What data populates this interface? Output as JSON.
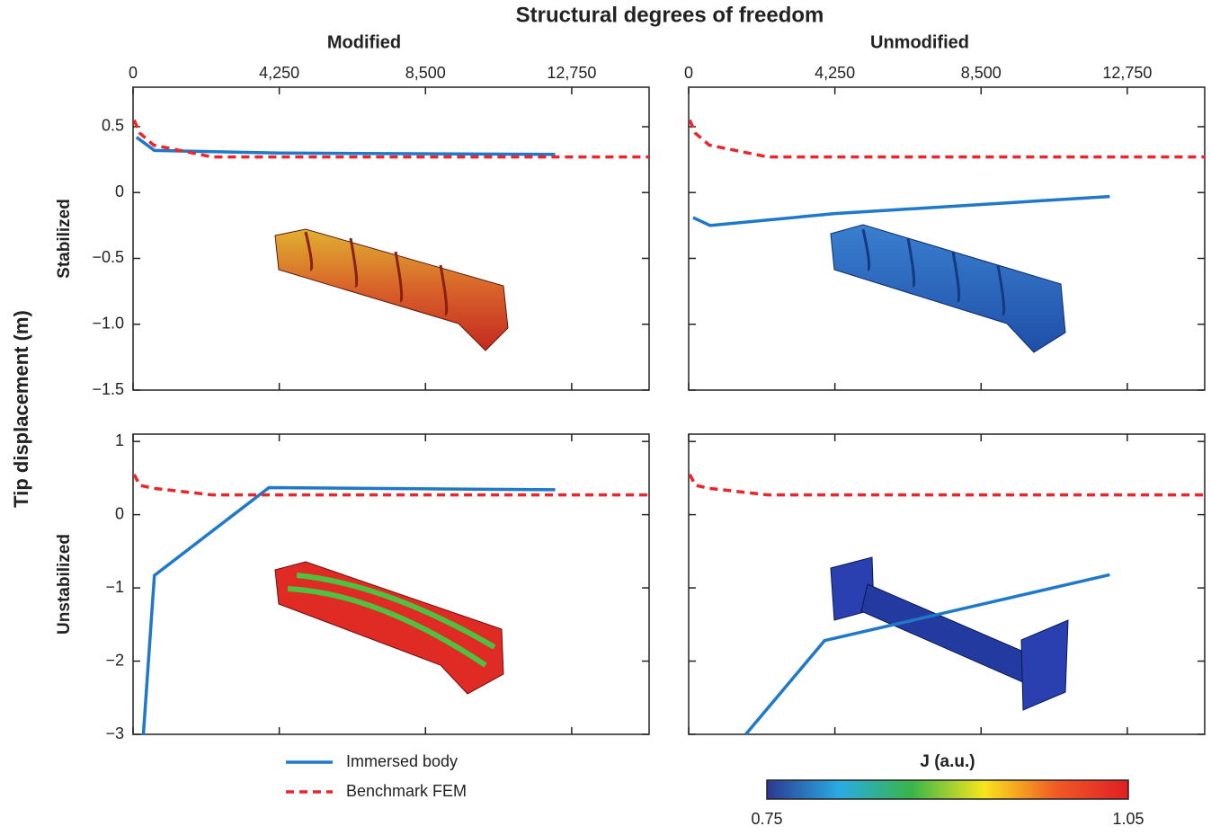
{
  "figure": {
    "title": "Structural degrees of freedom",
    "ylabel": "Tip displacement (m)"
  },
  "chart_data": [
    {
      "type": "line",
      "subtitle": "Modified",
      "row_label": "Stabilized",
      "xlim": [
        0,
        15000
      ],
      "xticks": [
        0,
        {
          "value": 4250,
          "label": "4,250"
        },
        {
          "value": 8500,
          "label": "8,500"
        },
        {
          "value": 12750,
          "label": "12,750"
        }
      ],
      "ylim": [
        -1.5,
        0.8
      ],
      "yticks": [
        {
          "value": -1.5,
          "label": "−1.5"
        },
        {
          "value": -1.0,
          "label": "−1.0"
        },
        {
          "value": -0.5,
          "label": "−0.5"
        },
        0,
        0.5
      ],
      "show_xtick_labels": true,
      "show_ytick_labels": true,
      "series": [
        {
          "color": "#1f78c8",
          "dash": false,
          "x": [
            100,
            620,
            4250,
            12270
          ],
          "values": [
            0.42,
            0.32,
            0.3,
            0.29
          ]
        },
        {
          "color": "#e8262b",
          "dash": true,
          "x": [
            30,
            200,
            600,
            2300,
            15000
          ],
          "values": [
            0.55,
            0.45,
            0.36,
            0.27,
            0.27
          ]
        }
      ]
    },
    {
      "type": "line",
      "subtitle": "Unmodified",
      "xlim": [
        0,
        15000
      ],
      "xticks": [
        0,
        {
          "value": 4250,
          "label": "4,250"
        },
        {
          "value": 8500,
          "label": "8,500"
        },
        {
          "value": 12750,
          "label": "12,750"
        }
      ],
      "ylim": [
        -1.5,
        0.8
      ],
      "yticks": [
        -1.5,
        -1,
        -0.5,
        0,
        0.5
      ],
      "show_xtick_labels": true,
      "show_ytick_labels": false,
      "series": [
        {
          "color": "#1f78c8",
          "dash": false,
          "x": [
            130,
            620,
            4250,
            12240
          ],
          "values": [
            -0.19,
            -0.25,
            -0.16,
            -0.03
          ]
        },
        {
          "color": "#e8262b",
          "dash": true,
          "x": [
            30,
            200,
            600,
            2300,
            15000
          ],
          "values": [
            0.55,
            0.45,
            0.36,
            0.27,
            0.27
          ]
        }
      ]
    },
    {
      "type": "line",
      "row_label": "Unstabilized",
      "legend": "below",
      "xlim": [
        0,
        15000
      ],
      "xticks": [
        0,
        4250,
        8500,
        12750
      ],
      "ylim": [
        -3,
        1.1
      ],
      "yticks": [
        {
          "value": -3,
          "label": "−3"
        },
        {
          "value": -2,
          "label": "−2"
        },
        {
          "value": -1,
          "label": "−1"
        },
        0,
        1
      ],
      "show_xtick_labels": false,
      "show_ytick_labels": true,
      "series": [
        {
          "name": "Immersed body",
          "color": "#1f78c8",
          "dash": false,
          "x": [
            300,
            620,
            3950,
            12270
          ],
          "values": [
            -3.0,
            -0.83,
            0.37,
            0.34
          ]
        },
        {
          "name": "Benchmark FEM",
          "color": "#e8262b",
          "dash": true,
          "x": [
            30,
            200,
            600,
            2300,
            15000
          ],
          "values": [
            0.55,
            0.4,
            0.36,
            0.27,
            0.27
          ]
        }
      ]
    },
    {
      "type": "line",
      "xlim": [
        0,
        15000
      ],
      "xticks": [
        0,
        4250,
        8500,
        12750
      ],
      "ylim": [
        -3,
        1.1
      ],
      "yticks": [
        -3,
        -2,
        -1,
        0,
        1
      ],
      "show_xtick_labels": false,
      "show_ytick_labels": false,
      "series": [
        {
          "color": "#1f78c8",
          "dash": false,
          "x": [
            1660,
            3950,
            12240
          ],
          "values": [
            -3.0,
            -1.72,
            -0.82
          ]
        },
        {
          "color": "#e8262b",
          "dash": true,
          "x": [
            30,
            200,
            600,
            2300,
            15000
          ],
          "values": [
            0.55,
            0.4,
            0.36,
            0.27,
            0.27
          ]
        }
      ]
    }
  ],
  "colorbar": {
    "title": "J (a.u.)",
    "lim": [
      0.75,
      1.05
    ],
    "ticks": [
      0.75,
      1.05
    ],
    "colors": [
      "#2b3990",
      "#29abe2",
      "#39b54a",
      "#f7e61c",
      "#f15a24",
      "#e01e25"
    ]
  }
}
